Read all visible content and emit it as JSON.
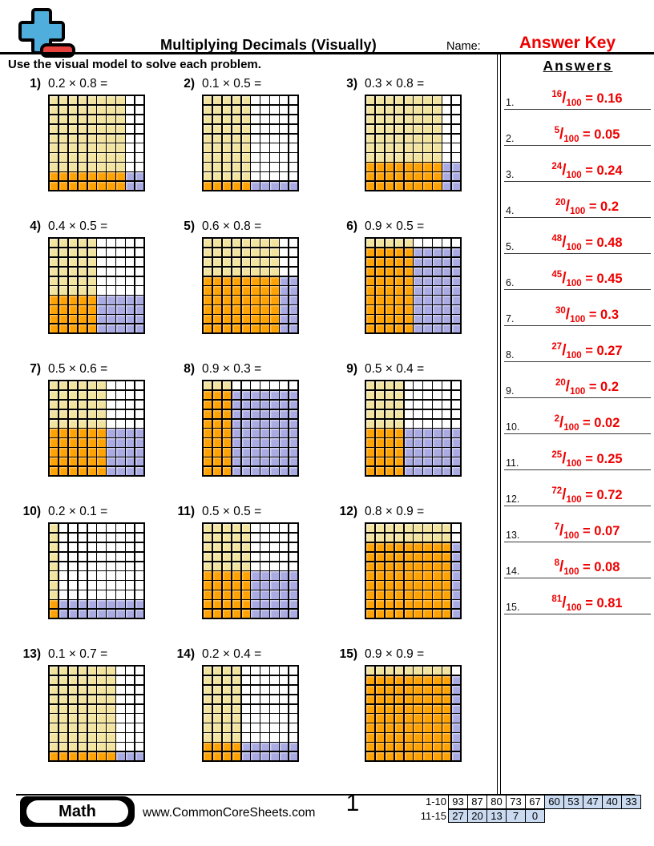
{
  "header": {
    "title": "Multiplying Decimals (Visually)",
    "name_label": "Name:",
    "name_value": "Answer Key",
    "instruction": "Use the visual model to solve each problem.",
    "answers_title": "Answers"
  },
  "problems": [
    {
      "num": "1)",
      "equation": "0.2 × 0.8 =",
      "rows": 2,
      "cols": 8
    },
    {
      "num": "2)",
      "equation": "0.1 × 0.5 =",
      "rows": 1,
      "cols": 5
    },
    {
      "num": "3)",
      "equation": "0.3 × 0.8 =",
      "rows": 3,
      "cols": 8
    },
    {
      "num": "4)",
      "equation": "0.4 × 0.5 =",
      "rows": 4,
      "cols": 5
    },
    {
      "num": "5)",
      "equation": "0.6 × 0.8 =",
      "rows": 6,
      "cols": 8
    },
    {
      "num": "6)",
      "equation": "0.9 × 0.5 =",
      "rows": 9,
      "cols": 5
    },
    {
      "num": "7)",
      "equation": "0.5 × 0.6 =",
      "rows": 5,
      "cols": 6
    },
    {
      "num": "8)",
      "equation": "0.9 × 0.3 =",
      "rows": 9,
      "cols": 3
    },
    {
      "num": "9)",
      "equation": "0.5 × 0.4 =",
      "rows": 5,
      "cols": 4
    },
    {
      "num": "10)",
      "equation": "0.2 × 0.1 =",
      "rows": 2,
      "cols": 1
    },
    {
      "num": "11)",
      "equation": "0.5 × 0.5 =",
      "rows": 5,
      "cols": 5
    },
    {
      "num": "12)",
      "equation": "0.8 × 0.9 =",
      "rows": 8,
      "cols": 9
    },
    {
      "num": "13)",
      "equation": "0.1 × 0.7 =",
      "rows": 1,
      "cols": 7
    },
    {
      "num": "14)",
      "equation": "0.2 × 0.4 =",
      "rows": 2,
      "cols": 4
    },
    {
      "num": "15)",
      "equation": "0.9 × 0.9 =",
      "rows": 9,
      "cols": 9
    }
  ],
  "answers": [
    {
      "num": "1.",
      "numerator": "16",
      "denominator": "100",
      "equals": "=",
      "value": "0.16"
    },
    {
      "num": "2.",
      "numerator": "5",
      "denominator": "100",
      "equals": "=",
      "value": "0.05"
    },
    {
      "num": "3.",
      "numerator": "24",
      "denominator": "100",
      "equals": "=",
      "value": "0.24"
    },
    {
      "num": "4.",
      "numerator": "20",
      "denominator": "100",
      "equals": "=",
      "value": "0.2"
    },
    {
      "num": "5.",
      "numerator": "48",
      "denominator": "100",
      "equals": "=",
      "value": "0.48"
    },
    {
      "num": "6.",
      "numerator": "45",
      "denominator": "100",
      "equals": "=",
      "value": "0.45"
    },
    {
      "num": "7.",
      "numerator": "30",
      "denominator": "100",
      "equals": "=",
      "value": "0.3"
    },
    {
      "num": "8.",
      "numerator": "27",
      "denominator": "100",
      "equals": "=",
      "value": "0.27"
    },
    {
      "num": "9.",
      "numerator": "20",
      "denominator": "100",
      "equals": "=",
      "value": "0.2"
    },
    {
      "num": "10.",
      "numerator": "2",
      "denominator": "100",
      "equals": "=",
      "value": "0.02"
    },
    {
      "num": "11.",
      "numerator": "25",
      "denominator": "100",
      "equals": "=",
      "value": "0.25"
    },
    {
      "num": "12.",
      "numerator": "72",
      "denominator": "100",
      "equals": "=",
      "value": "0.72"
    },
    {
      "num": "13.",
      "numerator": "7",
      "denominator": "100",
      "equals": "=",
      "value": "0.07"
    },
    {
      "num": "14.",
      "numerator": "8",
      "denominator": "100",
      "equals": "=",
      "value": "0.08"
    },
    {
      "num": "15.",
      "numerator": "81",
      "denominator": "100",
      "equals": "=",
      "value": "0.81"
    }
  ],
  "footer": {
    "subject": "Math",
    "website": "www.CommonCoreSheets.com",
    "page_number": "1",
    "score_rows": [
      {
        "label": "1-10",
        "cells": [
          {
            "v": "93",
            "hl": false
          },
          {
            "v": "87",
            "hl": false
          },
          {
            "v": "80",
            "hl": false
          },
          {
            "v": "73",
            "hl": false
          },
          {
            "v": "67",
            "hl": false
          },
          {
            "v": "60",
            "hl": true
          },
          {
            "v": "53",
            "hl": true
          },
          {
            "v": "47",
            "hl": true
          },
          {
            "v": "40",
            "hl": true
          },
          {
            "v": "33",
            "hl": true
          }
        ]
      },
      {
        "label": "11-15",
        "cells": [
          {
            "v": "27",
            "hl": true
          },
          {
            "v": "20",
            "hl": true
          },
          {
            "v": "13",
            "hl": true
          },
          {
            "v": "7",
            "hl": true
          },
          {
            "v": "0",
            "hl": true
          }
        ]
      }
    ]
  },
  "colors": {
    "accent_red": "#ee0000",
    "grid_yellow": "#f2e39e",
    "grid_orange": "#ffa203",
    "grid_blue": "#ababe4",
    "score_blue": "#c9daf1",
    "logo_blue": "#4faedc",
    "logo_red": "#e8413c"
  }
}
